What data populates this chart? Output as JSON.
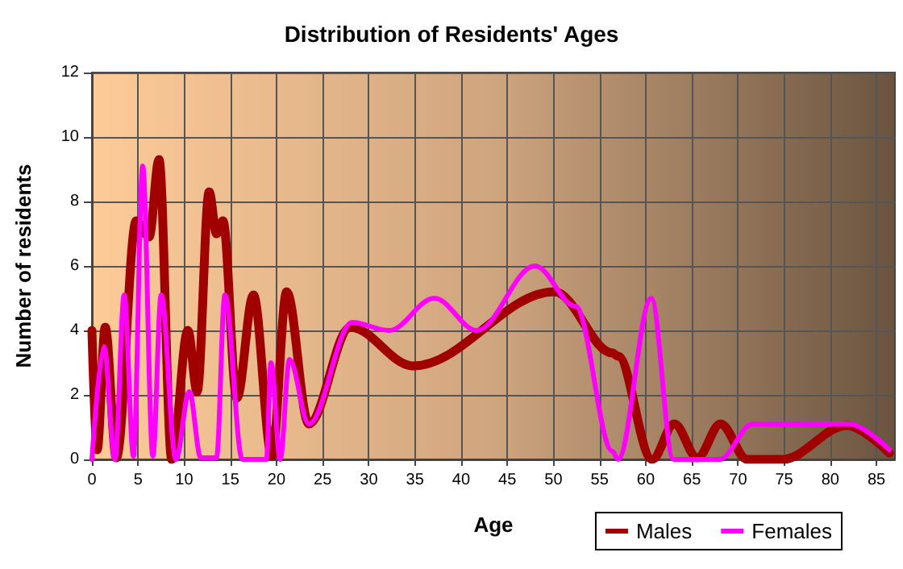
{
  "chart_data": {
    "type": "line",
    "title": "Distribution of Residents' Ages",
    "xlabel": "Age",
    "ylabel": "Number of residents",
    "series": [
      {
        "name": "Males",
        "color": "#a00000",
        "x": [
          0,
          0.57,
          1.44,
          2.65,
          4.8,
          6.2,
          7.27,
          8.65,
          10.4,
          11.4,
          12.7,
          13.5,
          14.2,
          15.7,
          17.5,
          19.5,
          21.1,
          23.5,
          28,
          34.8,
          50.1,
          56.4,
          57,
          60.7,
          63.1,
          65.6,
          68.1,
          71,
          74.8,
          81.8,
          86.4
        ],
        "values": [
          4,
          0.3,
          4.1,
          0.05,
          7.4,
          6.9,
          9.3,
          0,
          4,
          2.1,
          8.3,
          7,
          7.4,
          1.9,
          5.1,
          0.1,
          5.2,
          1.1,
          4.1,
          2.9,
          5.2,
          3.3,
          3.2,
          0,
          1.1,
          0.05,
          1.1,
          0,
          0,
          1.05,
          0.2
        ]
      },
      {
        "name": "Females",
        "color": "#ff00ff",
        "x": [
          0,
          1.3,
          2.5,
          3.5,
          4.5,
          5.5,
          6.6,
          7.5,
          9.1,
          10.55,
          11.8,
          13.5,
          14.4,
          16.3,
          18.9,
          19.4,
          20.4,
          21.4,
          23.5,
          28.2,
          32.2,
          37.1,
          41.7,
          48,
          52.4,
          56.4,
          57,
          60.6,
          63,
          68,
          71.6,
          76,
          80,
          82,
          86.4
        ],
        "values": [
          0,
          3.5,
          0,
          5.1,
          0.1,
          9.1,
          0.1,
          5.1,
          0,
          2.1,
          0.05,
          0.05,
          5.1,
          0,
          0,
          3,
          0,
          3.1,
          1.1,
          4.25,
          4,
          5,
          4,
          6,
          4.75,
          0.25,
          0,
          5,
          0,
          0,
          1.1,
          1.1,
          1.1,
          1.1,
          0.3
        ]
      }
    ],
    "xlim": [
      0,
      87
    ],
    "xticks": [
      0,
      5,
      10,
      15,
      20,
      25,
      30,
      35,
      40,
      45,
      50,
      55,
      60,
      65,
      70,
      75,
      80,
      85
    ],
    "ylim": [
      0,
      12
    ],
    "yticks": [
      0,
      2,
      4,
      6,
      8,
      10,
      12
    ],
    "grid": true,
    "legend": "bottom right",
    "marker": "none",
    "line_style": "solid"
  }
}
